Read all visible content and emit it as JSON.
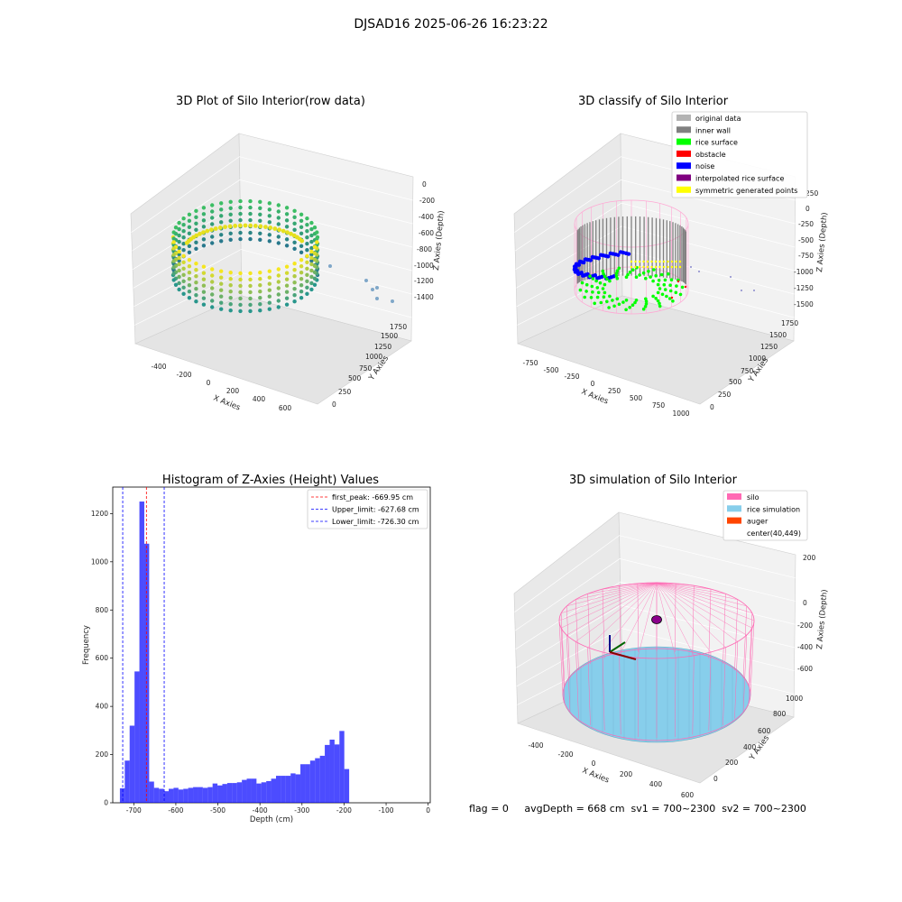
{
  "figure": {
    "title": "DJSAD16 2025-06-26 16:23:22",
    "status_line": "flag = 0     avgDepth = 668 cm  sv1 = 700~2300  sv2 = 700~2300"
  },
  "panels": {
    "raw": {
      "title": "3D Plot of Silo Interior(row data)",
      "xlabel": "X Axies",
      "ylabel": "Y Axies",
      "zlabel": "Z Axies (Depth)",
      "xticks": [
        "-400",
        "-200",
        "0",
        "200",
        "400",
        "600"
      ],
      "yticks": [
        "0",
        "250",
        "500",
        "750",
        "1000",
        "1250",
        "1500",
        "1750"
      ],
      "zticks": [
        "0",
        "-200",
        "-400",
        "-600",
        "-800",
        "-1000",
        "-1200",
        "-1400"
      ]
    },
    "classify": {
      "title": "3D classify of Silo Interior",
      "xlabel": "X Axies",
      "ylabel": "Y Axies",
      "zlabel": "Z Axies (Depth)",
      "xticks": [
        "-750",
        "-500",
        "-250",
        "0",
        "250",
        "500",
        "750",
        "1000"
      ],
      "yticks": [
        "0",
        "250",
        "500",
        "750",
        "1000",
        "1250",
        "1500",
        "1750"
      ],
      "zticks": [
        "250",
        "0",
        "-250",
        "-500",
        "-750",
        "-1000",
        "-1250",
        "-1500"
      ],
      "legend": [
        {
          "label": "original data",
          "color": "#b3b3b3"
        },
        {
          "label": "inner wall",
          "color": "#808080"
        },
        {
          "label": "rice surface",
          "color": "#00ff00"
        },
        {
          "label": "obstacle",
          "color": "#ff0000"
        },
        {
          "label": "noise",
          "color": "#0000ff"
        },
        {
          "label": "interpolated rice surface",
          "color": "#800080"
        },
        {
          "label": "symmetric generated points",
          "color": "#ffff00"
        }
      ]
    },
    "simulation": {
      "title": "3D simulation of Silo Interior",
      "xlabel": "X Axies",
      "ylabel": "Y Axies",
      "zlabel": "Z Axies (Depth)",
      "xticks": [
        "-400",
        "-200",
        "0",
        "200",
        "400",
        "600"
      ],
      "yticks": [
        "0",
        "200",
        "400",
        "600",
        "800",
        "1000"
      ],
      "zticks": [
        "200",
        "0",
        "-200",
        "-400",
        "-600"
      ],
      "legend": [
        {
          "label": "silo",
          "color": "#ff69b4"
        },
        {
          "label": "rice simulation",
          "color": "#87ceeb"
        },
        {
          "label": "auger",
          "color": "#ff4500"
        },
        {
          "label": "center(40,449)",
          "color": "#ffffff"
        }
      ]
    }
  },
  "chart_data": {
    "type": "bar",
    "title": "Histogram of Z-Axies (Height) Values",
    "xlabel": "Depth (cm)",
    "ylabel": "Frequency",
    "xlim": [
      -750,
      5
    ],
    "ylim": [
      0,
      1310
    ],
    "xticks": [
      -700,
      -600,
      -500,
      -400,
      -300,
      -200,
      -100,
      0
    ],
    "yticks": [
      0,
      200,
      400,
      600,
      800,
      1000,
      1200
    ],
    "bar_color": "#0000ff",
    "bin_start": -733,
    "bin_width": 11.6,
    "values": [
      60,
      175,
      320,
      545,
      1250,
      1075,
      88,
      62,
      58,
      48,
      58,
      62,
      55,
      58,
      62,
      65,
      65,
      62,
      65,
      80,
      72,
      78,
      82,
      82,
      85,
      95,
      100,
      100,
      80,
      85,
      90,
      100,
      112,
      112,
      112,
      122,
      118,
      160,
      160,
      175,
      185,
      195,
      240,
      262,
      242,
      298,
      140
    ],
    "vlines": [
      {
        "label": "first_peak: -669.95 cm",
        "x": -669.95,
        "color": "#ff0000"
      },
      {
        "label": "Upper_limit: -627.68 cm",
        "x": -627.68,
        "color": "#0000ff"
      },
      {
        "label": "Lower_limit: -726.30 cm",
        "x": -726.3,
        "color": "#0000ff"
      }
    ],
    "legend_position": "top-right"
  }
}
